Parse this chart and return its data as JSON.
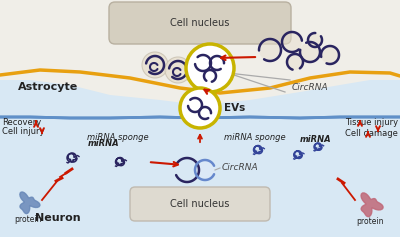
{
  "bg_white": "#ffffff",
  "bg_astrocyte": "#f0eee8",
  "bg_neuron": "#d8e8f4",
  "border_astrocyte": "#e8a010",
  "border_neuron": "#6090c8",
  "circ_color": "#2a2560",
  "circ_light": "#e8e0d0",
  "yellow_circle": "#c8b400",
  "red_arrow": "#cc1800",
  "gray_line": "#888888",
  "cell_nucleus_fill": "#d5cfc0",
  "cell_nucleus_neuron_fill": "#dedad0",
  "protein_left": "#6888b8",
  "protein_right": "#c06878",
  "astrocyte_label": "Astrocyte",
  "neuron_label": "Neuron",
  "cell_nucleus_label": "Cell nucleus",
  "evs_label": "EVs",
  "circrna_label": "CircRNA",
  "mirna_label": "miRNA",
  "mirna_sponge_label": "miRNA sponge",
  "recovery_label": "Recovery",
  "cell_injury_label": "Cell injury",
  "tissue_injury_label": "Tissue injury",
  "cell_damage_label": "Cell damage",
  "protein_label": "protein"
}
